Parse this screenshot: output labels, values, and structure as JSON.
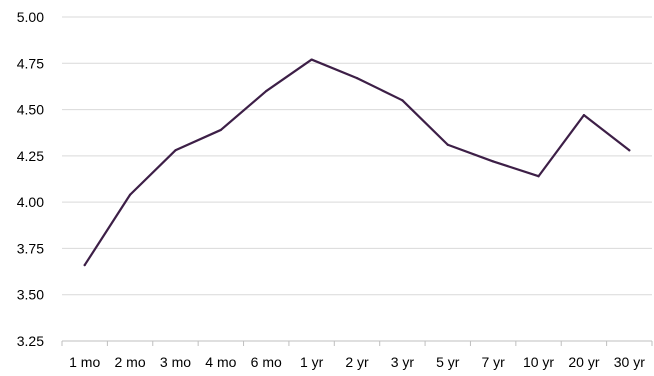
{
  "chart_data": {
    "type": "line",
    "title": "",
    "xlabel": "",
    "ylabel": "",
    "categories": [
      "1 mo",
      "2 mo",
      "3 mo",
      "4 mo",
      "6 mo",
      "1 yr",
      "2 yr",
      "3 yr",
      "5 yr",
      "7 yr",
      "10 yr",
      "20 yr",
      "30 yr"
    ],
    "series": [
      {
        "values": [
          3.66,
          4.04,
          4.28,
          4.39,
          4.6,
          4.77,
          4.67,
          4.55,
          4.31,
          4.22,
          4.14,
          4.47,
          4.28
        ],
        "color": "#3d1f47"
      }
    ],
    "ylim": [
      3.25,
      5.0
    ],
    "yticks": [
      "3.25",
      "3.50",
      "3.75",
      "4.00",
      "4.25",
      "4.50",
      "4.75",
      "5.00"
    ],
    "grid": true,
    "legend": "none"
  }
}
